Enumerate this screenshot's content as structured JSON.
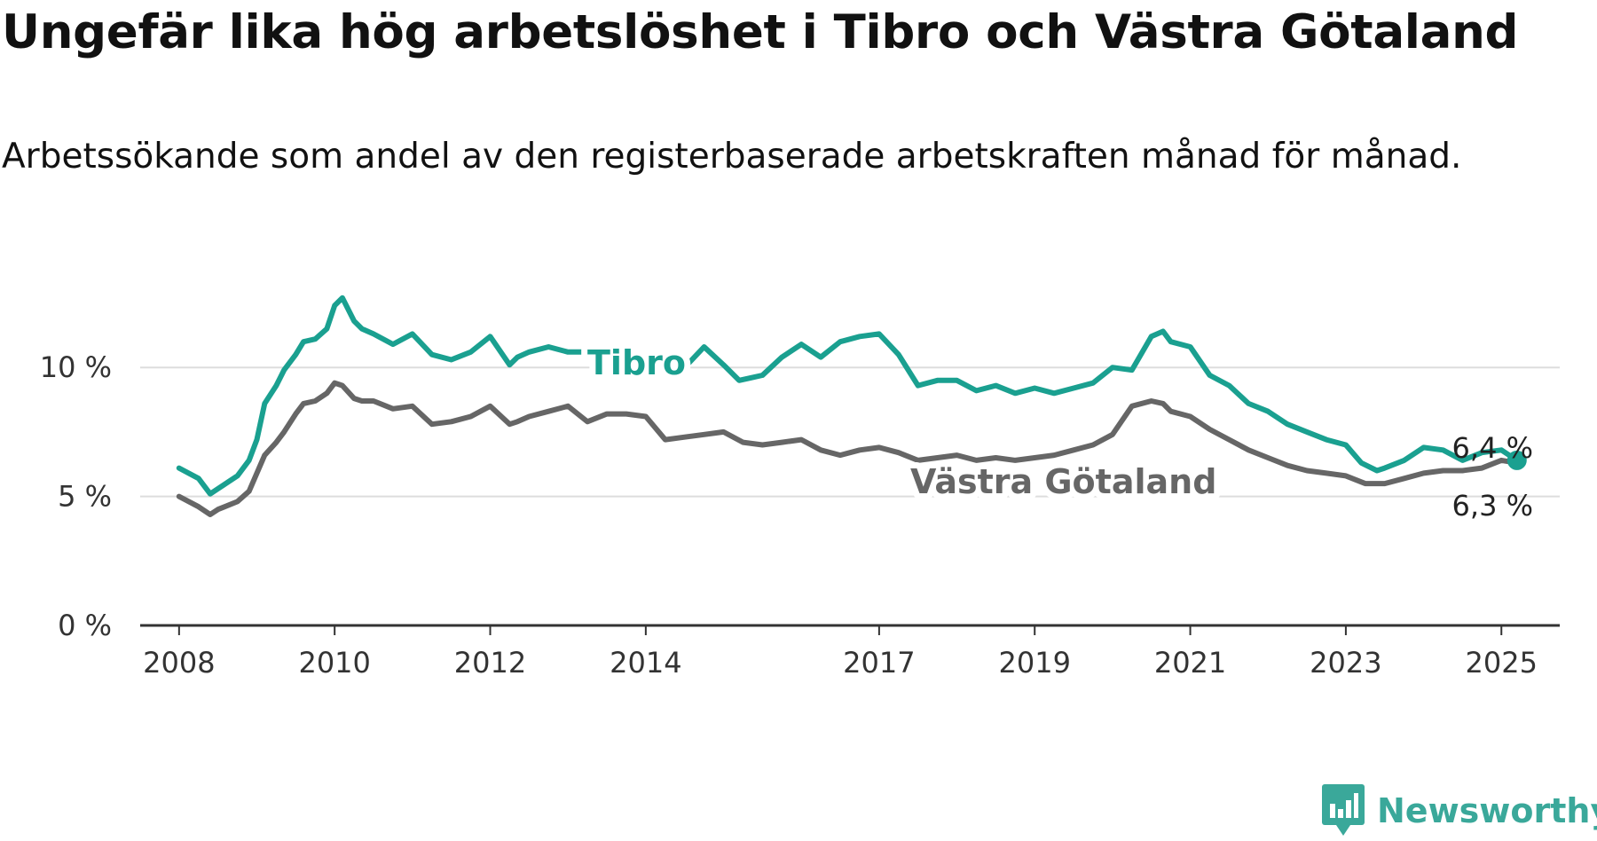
{
  "title": "Ungefär lika hög arbetslöshet i Tibro och Västra Götaland",
  "subtitle": "Arbetssökande som andel av den registerbaserade arbetskraften månad för månad.",
  "brand": {
    "name": "Newsworthy",
    "icon": "newsworthy-logo-icon",
    "color": "#3aa89a"
  },
  "chart_data": {
    "type": "line",
    "title": "Ungefär lika hög arbetslöshet i Tibro och Västra Götaland",
    "subtitle": "Arbetssökande som andel av den registerbaserade arbetskraften månad för månad.",
    "xlabel": "",
    "ylabel": "",
    "x_unit": "year",
    "x_range": [
      2007.5,
      2025.75
    ],
    "ylim": [
      0,
      13
    ],
    "y_ticks": [
      0,
      5,
      10
    ],
    "y_tick_labels": [
      "0 %",
      "5 %",
      "10 %"
    ],
    "x_ticks": [
      2008,
      2010,
      2012,
      2014,
      2017,
      2019,
      2021,
      2023,
      2025
    ],
    "x_tick_labels": [
      "2008",
      "2010",
      "2012",
      "2014",
      "2017",
      "2019",
      "2021",
      "2023",
      "2025"
    ],
    "grid": "horizontal",
    "series": [
      {
        "name": "Tibro",
        "color": "#1aa090",
        "label": "Tibro",
        "end_label": "6,4 %",
        "x": [
          2008.0,
          2008.25,
          2008.4,
          2008.5,
          2008.75,
          2008.9,
          2009.0,
          2009.1,
          2009.25,
          2009.35,
          2009.5,
          2009.6,
          2009.75,
          2009.9,
          2010.0,
          2010.1,
          2010.25,
          2010.35,
          2010.5,
          2010.75,
          2011.0,
          2011.25,
          2011.5,
          2011.75,
          2012.0,
          2012.25,
          2012.35,
          2012.5,
          2012.75,
          2013.0,
          2013.25,
          2013.5,
          2013.6,
          2013.75,
          2014.1,
          2014.25,
          2014.5,
          2014.75,
          2015.0,
          2015.2,
          2015.35,
          2015.5,
          2015.75,
          2016.0,
          2016.25,
          2016.5,
          2016.75,
          2017.0,
          2017.25,
          2017.5,
          2017.75,
          2018.0,
          2018.25,
          2018.5,
          2018.75,
          2019.0,
          2019.25,
          2019.5,
          2019.75,
          2020.0,
          2020.25,
          2020.5,
          2020.65,
          2020.75,
          2021.0,
          2021.25,
          2021.5,
          2021.75,
          2022.0,
          2022.25,
          2022.5,
          2022.75,
          2023.0,
          2023.2,
          2023.4,
          2023.5,
          2023.75,
          2024.0,
          2024.25,
          2024.5,
          2024.75,
          2025.0,
          2025.2
        ],
        "values": [
          6.1,
          5.7,
          5.1,
          5.3,
          5.8,
          6.4,
          7.2,
          8.6,
          9.3,
          9.9,
          10.5,
          11.0,
          11.1,
          11.5,
          12.4,
          12.7,
          11.8,
          11.5,
          11.3,
          10.9,
          11.3,
          10.5,
          10.3,
          10.6,
          11.2,
          10.1,
          10.4,
          10.6,
          10.8,
          10.6,
          10.6,
          10.2,
          10.4,
          10.6,
          10.4,
          9.9,
          10.0,
          10.8,
          10.1,
          9.5,
          9.6,
          9.7,
          10.4,
          10.9,
          10.4,
          11.0,
          11.2,
          11.3,
          10.5,
          9.3,
          9.5,
          9.5,
          9.1,
          9.3,
          9.0,
          9.2,
          9.0,
          9.2,
          9.4,
          10.0,
          9.9,
          11.2,
          11.4,
          11.0,
          10.8,
          9.7,
          9.3,
          8.6,
          8.3,
          7.8,
          7.5,
          7.2,
          7.0,
          6.3,
          6.0,
          6.1,
          6.4,
          6.9,
          6.8,
          6.4,
          6.7,
          6.8,
          6.4
        ]
      },
      {
        "name": "Västra Götaland",
        "color": "#666666",
        "label": "Västra Götaland",
        "end_label": "6,3 %",
        "x": [
          2008.0,
          2008.25,
          2008.4,
          2008.5,
          2008.75,
          2008.9,
          2009.0,
          2009.1,
          2009.25,
          2009.35,
          2009.5,
          2009.6,
          2009.75,
          2009.9,
          2010.0,
          2010.1,
          2010.25,
          2010.35,
          2010.5,
          2010.75,
          2011.0,
          2011.25,
          2011.5,
          2011.75,
          2012.0,
          2012.25,
          2012.35,
          2012.5,
          2012.75,
          2013.0,
          2013.25,
          2013.5,
          2013.75,
          2014.0,
          2014.25,
          2014.5,
          2014.75,
          2015.0,
          2015.25,
          2015.5,
          2015.75,
          2016.0,
          2016.25,
          2016.5,
          2016.75,
          2017.0,
          2017.25,
          2017.5,
          2017.75,
          2018.0,
          2018.25,
          2018.5,
          2018.75,
          2019.0,
          2019.25,
          2019.5,
          2019.75,
          2020.0,
          2020.25,
          2020.5,
          2020.65,
          2020.75,
          2021.0,
          2021.25,
          2021.5,
          2021.75,
          2022.0,
          2022.25,
          2022.5,
          2022.75,
          2023.0,
          2023.25,
          2023.5,
          2023.75,
          2024.0,
          2024.25,
          2024.5,
          2024.75,
          2025.0,
          2025.2
        ],
        "values": [
          5.0,
          4.6,
          4.3,
          4.5,
          4.8,
          5.2,
          5.9,
          6.6,
          7.1,
          7.5,
          8.2,
          8.6,
          8.7,
          9.0,
          9.4,
          9.3,
          8.8,
          8.7,
          8.7,
          8.4,
          8.5,
          7.8,
          7.9,
          8.1,
          8.5,
          7.8,
          7.9,
          8.1,
          8.3,
          8.5,
          7.9,
          8.2,
          8.2,
          8.1,
          7.2,
          7.3,
          7.4,
          7.5,
          7.1,
          7.0,
          7.1,
          7.2,
          6.8,
          6.6,
          6.8,
          6.9,
          6.7,
          6.4,
          6.5,
          6.6,
          6.4,
          6.5,
          6.4,
          6.5,
          6.6,
          6.8,
          7.0,
          7.4,
          8.5,
          8.7,
          8.6,
          8.3,
          8.1,
          7.6,
          7.2,
          6.8,
          6.5,
          6.2,
          6.0,
          5.9,
          5.8,
          5.5,
          5.5,
          5.7,
          5.9,
          6.0,
          6.0,
          6.1,
          6.4,
          6.3
        ]
      }
    ]
  }
}
